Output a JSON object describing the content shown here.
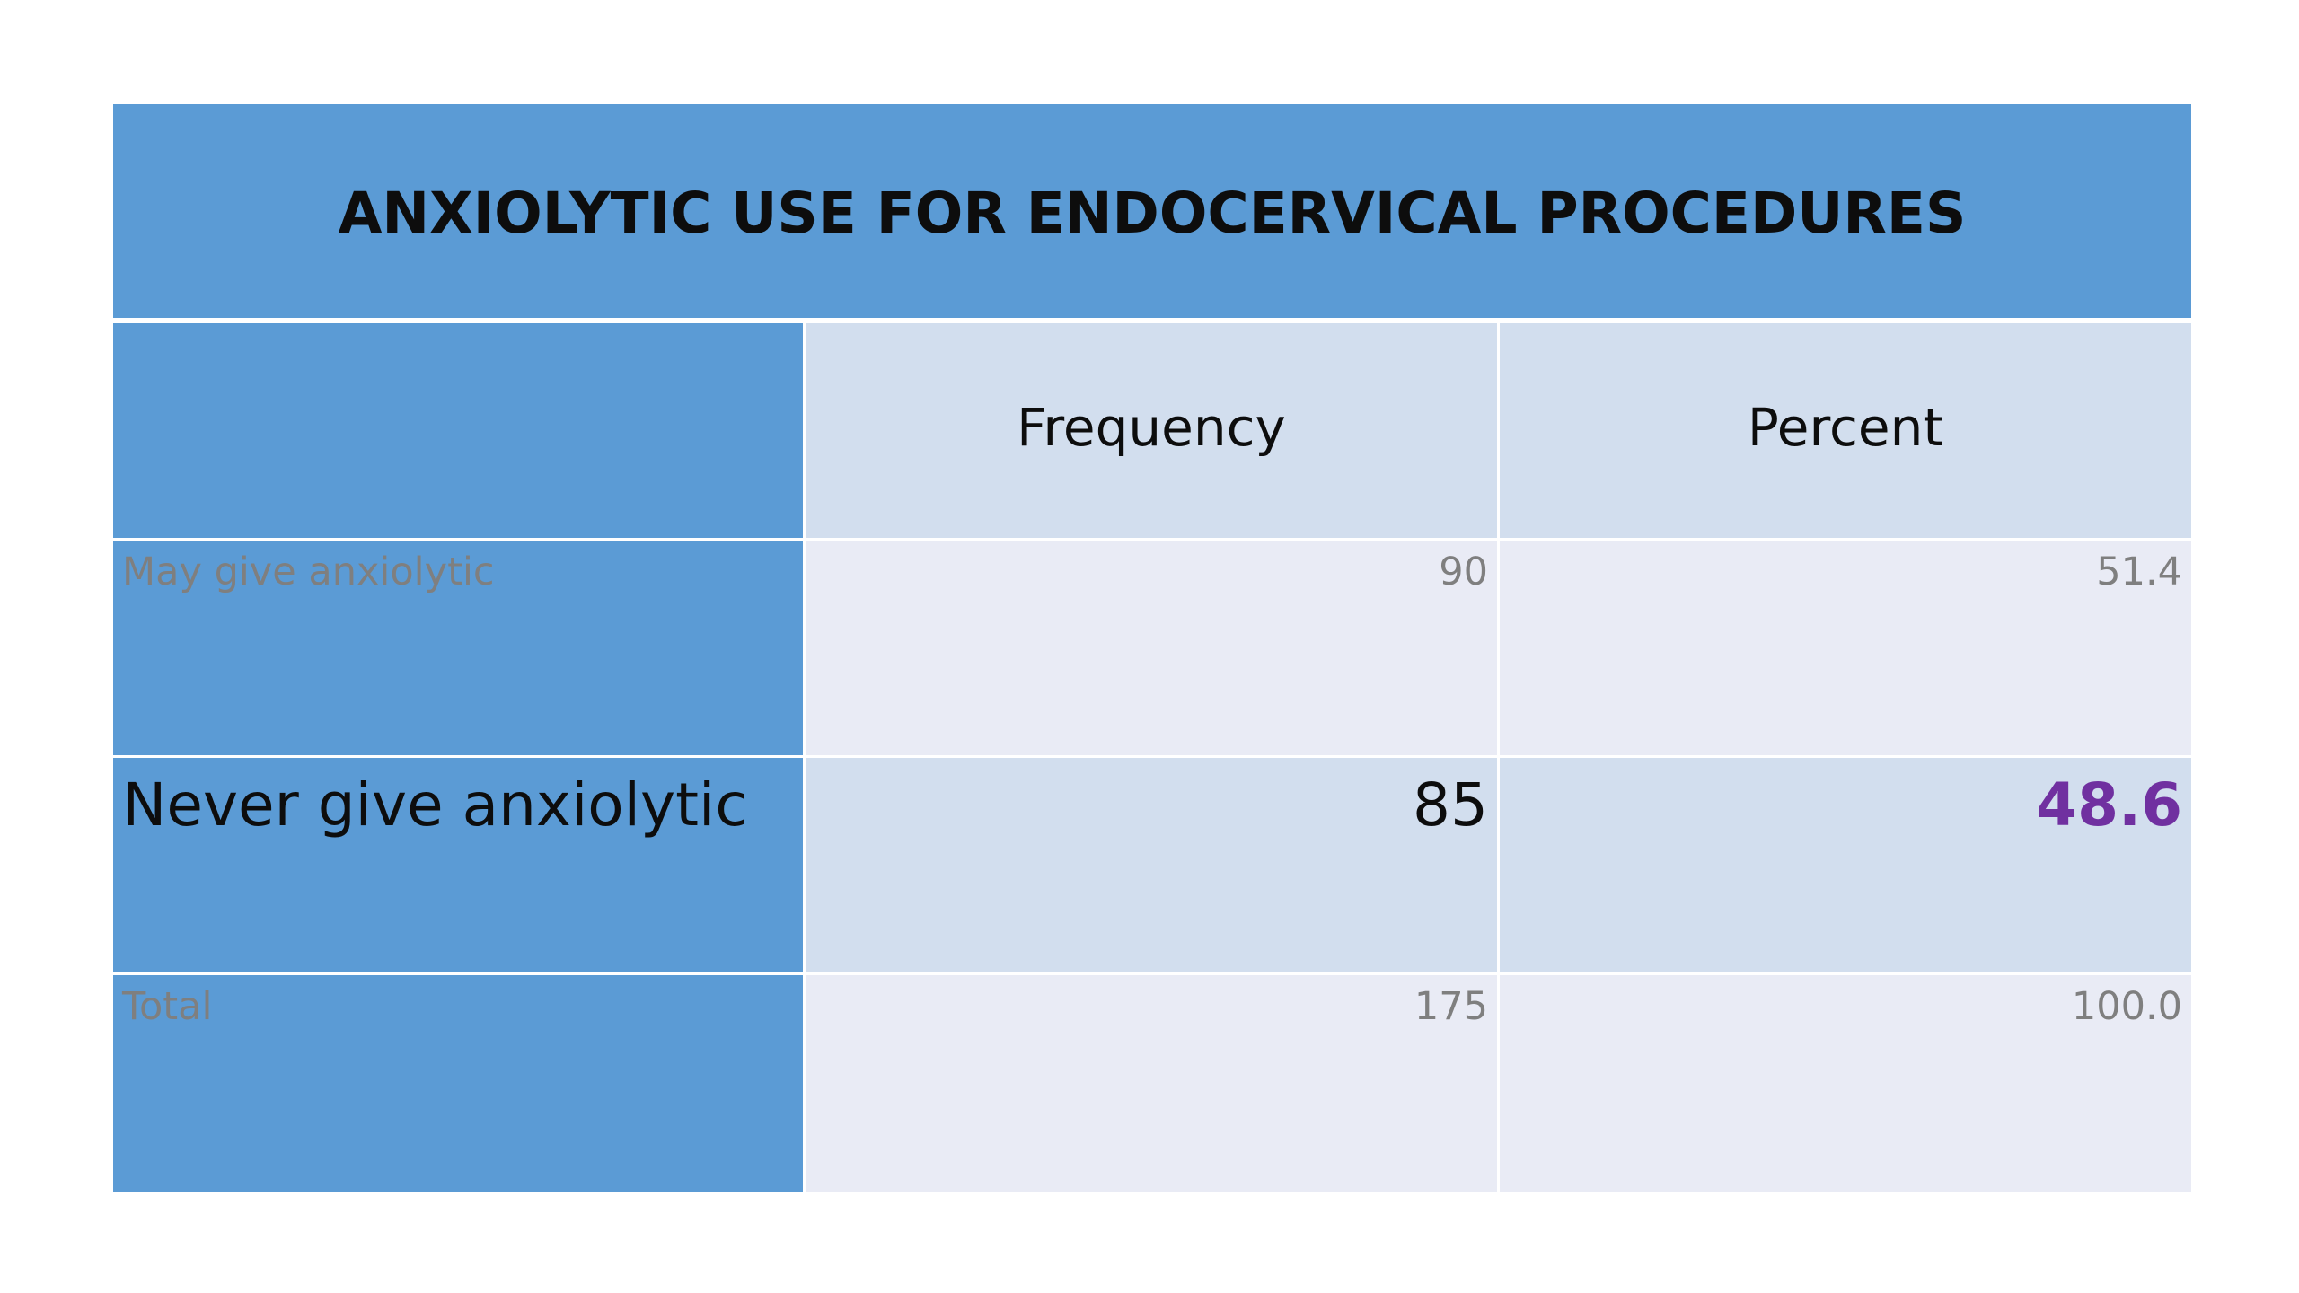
{
  "table": {
    "title": "ANXIOLYTIC USE FOR ENDOCERVICAL PROCEDURES",
    "columns": [
      "",
      "Frequency",
      "Percent"
    ],
    "rows": [
      {
        "label": "May give anxiolytic",
        "frequency": "90",
        "percent": "51.4"
      },
      {
        "label": "Never give anxiolytic",
        "frequency": "85",
        "percent": "48.6"
      },
      {
        "label": "Total",
        "frequency": "175",
        "percent": "100.0"
      }
    ]
  },
  "colors": {
    "title_background": "#5b9bd5",
    "label_column_background": "#5b9bd5",
    "band_dark": "#d2deee",
    "band_light": "#e9ebf5",
    "highlight_value": "#7030a0",
    "muted_text": "#7f7f7f"
  }
}
